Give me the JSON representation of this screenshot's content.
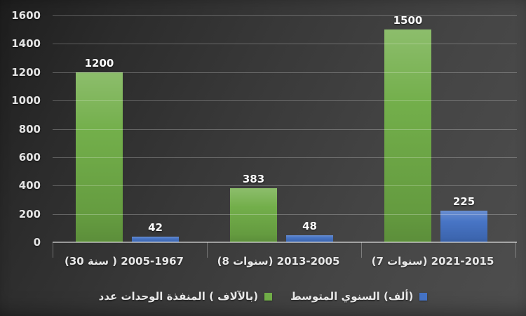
{
  "chart_data": {
    "type": "bar",
    "title": "",
    "categories": [
      "(30‎ سنة‎ ) 2005-1967",
      "(8‎ سنوات‎) 2013-2005",
      "(7‎ سنوات‎) 2021-2015"
    ],
    "series": [
      {
        "name": "عدد‎ الوحدات‎ المنفذة‎ ( بالآلاف)‎",
        "color": "#70AD47",
        "values": [
          1200,
          383,
          1500
        ]
      },
      {
        "name": "المتوسط‎ السنوي‎ (ألف)‎",
        "color": "#4472C4",
        "values": [
          42,
          48,
          225
        ]
      }
    ],
    "yticks": [
      0,
      200,
      400,
      600,
      800,
      1000,
      1200,
      1400,
      1600
    ],
    "ylim": [
      0,
      1600
    ],
    "grid": true,
    "legend_position": "bottom",
    "value_labels_shown": true
  },
  "colors": {
    "background_dark": "#2b2b2b",
    "background_light": "#4e4e4e",
    "gridline": "rgba(255,255,255,0.25)",
    "axis_line": "rgba(255,255,255,0.5)",
    "text": "#e8e8e8"
  }
}
